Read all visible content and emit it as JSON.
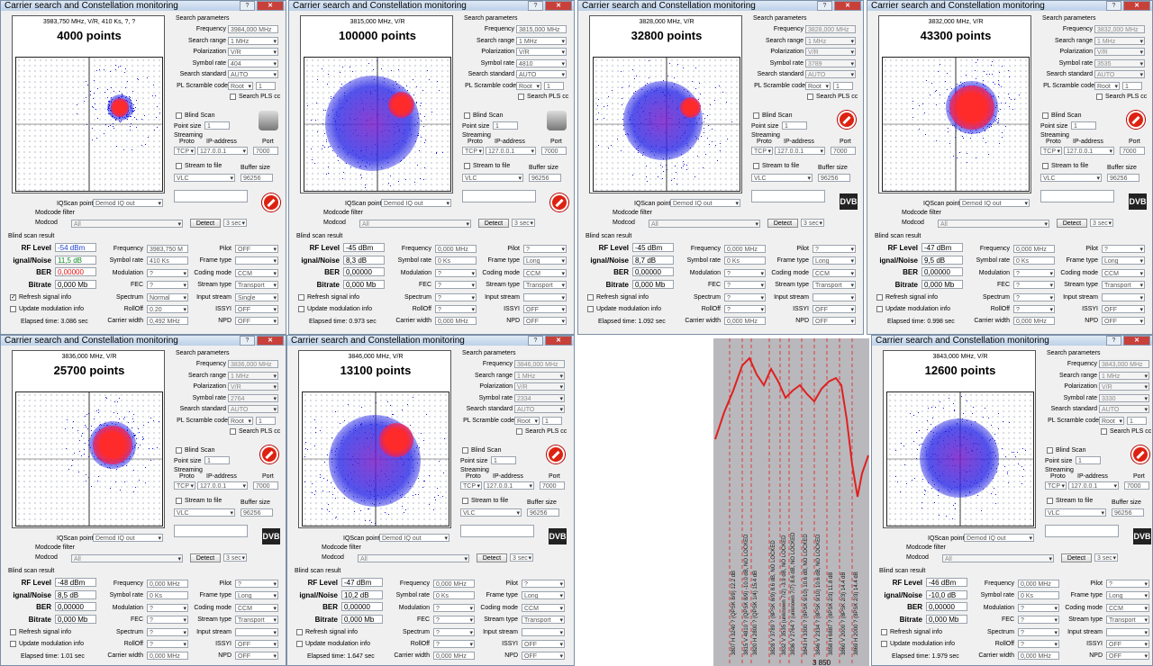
{
  "panels": [
    {
      "title": "Carrier search and Constellation monitoring",
      "header_freq": "3983,750 MHz, V/R, 410 Ks, ?, ?",
      "points": "4000 points",
      "frequency": "3984,000 MHz",
      "search_range": "1 MHz",
      "polarization": "V/R",
      "symbol_rate": "404",
      "search_standard": "AUTO",
      "pl_scramble_mode": "Root",
      "pl_scramble_val": "1",
      "rf_level": "-54 dBm",
      "sn": "11,5 dB",
      "ber": "0,00000",
      "bitrate": "0,000 Mb",
      "r_frequency": "3983,750 M",
      "r_symbol_rate": "410 Ks",
      "modulation": "?",
      "fec": "?",
      "spectrum": "Normal",
      "rolloff": "0.20",
      "carrier_width": "0,492 MHz",
      "pilot": "OFF",
      "frame_type": "",
      "coding_mode": "CCM",
      "stream_type": "Transport",
      "input_stream": "Single",
      "issyi": "OFF",
      "npd": "OFF",
      "elapsed": "Elapsed time: 3.086 sec",
      "refresh": true,
      "active": true,
      "btn": "sat"
    },
    {
      "title": "Carrier search and Constellation monitoring",
      "header_freq": "3815,000 MHz, V/R",
      "points": "100000 points",
      "frequency": "3815,000 MHz",
      "search_range": "1 MHz",
      "polarization": "V/R",
      "symbol_rate": "4810",
      "search_standard": "AUTO",
      "pl_scramble_mode": "Root",
      "pl_scramble_val": "1",
      "rf_level": "-45 dBm",
      "sn": "8,3 dB",
      "ber": "0,00000",
      "bitrate": "0,000 Mb",
      "r_frequency": "0,000 MHz",
      "r_symbol_rate": "0 Ks",
      "modulation": "?",
      "fec": "?",
      "spectrum": "?",
      "rolloff": "?",
      "carrier_width": "0,000 MHz",
      "pilot": "?",
      "frame_type": "Long",
      "coding_mode": "CCM",
      "stream_type": "Transport",
      "input_stream": "",
      "issyi": "OFF",
      "npd": "OFF",
      "elapsed": "Elapsed time: 0.973 sec",
      "refresh": false,
      "active": true,
      "btn": "sat"
    },
    {
      "title": "Carrier search and Constellation monitoring",
      "header_freq": "3828,000 MHz, V/R",
      "points": "32800 points",
      "frequency": "3828,000 MHz",
      "search_range": "1 MHz",
      "polarization": "V/R",
      "symbol_rate": "3789",
      "search_standard": "AUTO",
      "pl_scramble_mode": "Root",
      "pl_scramble_val": "1",
      "rf_level": "-45 dBm",
      "sn": "8,7 dB",
      "ber": "0,00000",
      "bitrate": "0,000 Mb",
      "r_frequency": "0,000 MHz",
      "r_symbol_rate": "0 Ks",
      "modulation": "?",
      "fec": "?",
      "spectrum": "?",
      "rolloff": "?",
      "carrier_width": "0,000 MHz",
      "pilot": "?",
      "frame_type": "Long",
      "coding_mode": "CCM",
      "stream_type": "Transport",
      "input_stream": "",
      "issyi": "OFF",
      "npd": "OFF",
      "elapsed": "Elapsed time: 1.092 sec",
      "refresh": false,
      "active": false,
      "btn": "stop"
    },
    {
      "title": "Carrier search and Constellation monitoring",
      "header_freq": "3832,000 MHz, V/R",
      "points": "43300 points",
      "frequency": "3832,000 MHz",
      "search_range": "1 MHz",
      "polarization": "V/R",
      "symbol_rate": "3535",
      "search_standard": "AUTO",
      "pl_scramble_mode": "Root",
      "pl_scramble_val": "1",
      "rf_level": "-47 dBm",
      "sn": "9,5 dB",
      "ber": "0,00000",
      "bitrate": "0,000 Mb",
      "r_frequency": "0,000 MHz",
      "r_symbol_rate": "0 Ks",
      "modulation": "?",
      "fec": "?",
      "spectrum": "?",
      "rolloff": "?",
      "carrier_width": "0,000 MHz",
      "pilot": "?",
      "frame_type": "Long",
      "coding_mode": "CCM",
      "stream_type": "Transport",
      "input_stream": "",
      "issyi": "OFF",
      "npd": "OFF",
      "elapsed": "Elapsed time: 0.998 sec",
      "refresh": false,
      "active": false,
      "btn": "stop"
    },
    {
      "title": "Carrier search and Constellation monitoring",
      "header_freq": "3836,000 MHz, V/R",
      "points": "25700 points",
      "frequency": "3836,000 MHz",
      "search_range": "1 MHz",
      "polarization": "V/R",
      "symbol_rate": "2764",
      "search_standard": "AUTO",
      "pl_scramble_mode": "Root",
      "pl_scramble_val": "1",
      "rf_level": "-48 dBm",
      "sn": "8,5 dB",
      "ber": "0,00000",
      "bitrate": "0,000 Mb",
      "r_frequency": "0,000 MHz",
      "r_symbol_rate": "0 Ks",
      "modulation": "?",
      "fec": "?",
      "spectrum": "?",
      "rolloff": "?",
      "carrier_width": "0,000 MHz",
      "pilot": "?",
      "frame_type": "Long",
      "coding_mode": "CCM",
      "stream_type": "Transport",
      "input_stream": "",
      "issyi": "OFF",
      "npd": "OFF",
      "elapsed": "Elapsed time: 1.01 sec",
      "refresh": false,
      "active": false,
      "btn": "stop"
    },
    {
      "title": "Carrier search and Constellation monitoring",
      "header_freq": "3846,000 MHz, V/R",
      "points": "13100 points",
      "frequency": "3846,000 MHz",
      "search_range": "1 MHz",
      "polarization": "V/R",
      "symbol_rate": "2334",
      "search_standard": "AUTO",
      "pl_scramble_mode": "Root",
      "pl_scramble_val": "1",
      "rf_level": "-47 dBm",
      "sn": "10,2 dB",
      "ber": "0,00000",
      "bitrate": "0,000 Mb",
      "r_frequency": "0,000 MHz",
      "r_symbol_rate": "0 Ks",
      "modulation": "?",
      "fec": "?",
      "spectrum": "?",
      "rolloff": "?",
      "carrier_width": "0,000 MHz",
      "pilot": "?",
      "frame_type": "Long",
      "coding_mode": "CCM",
      "stream_type": "Transport",
      "input_stream": "",
      "issyi": "OFF",
      "npd": "OFF",
      "elapsed": "Elapsed time: 1.647 sec",
      "refresh": false,
      "active": false,
      "btn": "stop"
    },
    {
      "title": "Carrier search and Constellation monitoring",
      "header_freq": "3843,000 MHz, V/R",
      "points": "12600 points",
      "frequency": "3843,000 MHz",
      "search_range": "1 MHz",
      "polarization": "V/R",
      "symbol_rate": "3330",
      "search_standard": "AUTO",
      "pl_scramble_mode": "Root",
      "pl_scramble_val": "1",
      "rf_level": "-46 dBm",
      "sn": "-10,0 dB",
      "ber": "0,00000",
      "bitrate": "0,000 Mb",
      "r_frequency": "0,000 MHz",
      "r_symbol_rate": "0 Ks",
      "modulation": "?",
      "fec": "?",
      "spectrum": "?",
      "rolloff": "?",
      "carrier_width": "0,000 MHz",
      "pilot": "?",
      "frame_type": "Long",
      "coding_mode": "CCM",
      "stream_type": "Transport",
      "input_stream": "",
      "issyi": "OFF",
      "npd": "OFF",
      "elapsed": "Elapsed time: 1.979 sec",
      "refresh": false,
      "active": false,
      "btn": "stop"
    }
  ],
  "common": {
    "search_parameters": "Search parameters",
    "lbl_frequency": "Frequency",
    "lbl_search_range": "Search range",
    "lbl_polarization": "Polarization",
    "lbl_symbol_rate": "Symbol rate",
    "lbl_search_standard": "Search standard",
    "lbl_pl_scramble": "PL Scramble code",
    "lbl_search_pls": "Search PLS cc",
    "blind_scan": "Blind Scan",
    "point_size": "Point size",
    "point_size_val": "1",
    "streaming": "Streaming",
    "proto": "Proto",
    "ip_address": "IP-address",
    "port": "Port",
    "proto_val": "TCP",
    "ip_val": "127.0.0.1",
    "port_val": "7000",
    "stream_to_file": "Stream to file",
    "buffer_size": "Buffer size",
    "player": "VLC",
    "buffer_val": "96256",
    "iqscan_point": "IQScan point",
    "iq_mode": "Demod IQ out",
    "modcode_filter": "Modcode filter",
    "modcod": "Modcod",
    "all": "All",
    "detect": "Detect",
    "interval": "3 sec",
    "blind_scan_result": "Blind scan result",
    "lbl_rf_level": "RF Level",
    "lbl_sn": "ignal/Noise",
    "lbl_ber": "BER",
    "lbl_bitrate": "Bitrate",
    "lbl_frequency_r": "Frequency",
    "lbl_symbol_rate_r": "Symbol rate",
    "lbl_modulation": "Modulation",
    "lbl_fec": "FEC",
    "lbl_spectrum": "Spectrum",
    "lbl_rolloff": "RollOff",
    "lbl_carrier_width": "Carrier width",
    "lbl_pilot": "Pilot",
    "lbl_frame_type": "Frame type",
    "lbl_coding_mode": "Coding mode",
    "lbl_stream_type": "Stream type",
    "lbl_input_stream": "Input stream",
    "lbl_issyi": "ISSYI",
    "lbl_npd": "NPD",
    "refresh_signal_info": "Refresh signal info",
    "update_modulation_info": "Update modulation info",
    "dvb": "DVB",
    "qmark": "?"
  },
  "spectrum_view": {
    "labels": [
      "3807 H 3240 ? (QPSK 8/9) 12.2 dB",
      "3815 V 4810 ? (QPSK 8/9) -10.0 dB, NO LOCKED",
      "3820 H 2800 ? (QPSK 1/4) 15.4 dB",
      "3828 V 3789 ? (8PSK 8/9) 8.6 dB, NO LOCKED",
      "3832 V 3535 (unknown 7/2) -3.9 dB, NO LOCKED",
      "3836 V 2764 ? (unknown 7/7) 8.6 dB, NO LOCKED",
      "3843 H 3300 ? (8PSK 9/10) 10.6 dB, NO LOCKED",
      "3846 V 2334 ? (8PSK 9/10) 10.6 dB, NO LOCKED",
      "3858 H 6887 ? (8PSK 2/3) 11.8 dB",
      "3860 V 2000 ? (8PSK 2/3) 14.4 dB",
      "3869 H 2000 ? (8PSK 2/3) 14.4 dB"
    ],
    "axis_tick": "3 850",
    "curve_color": "#e02020"
  }
}
